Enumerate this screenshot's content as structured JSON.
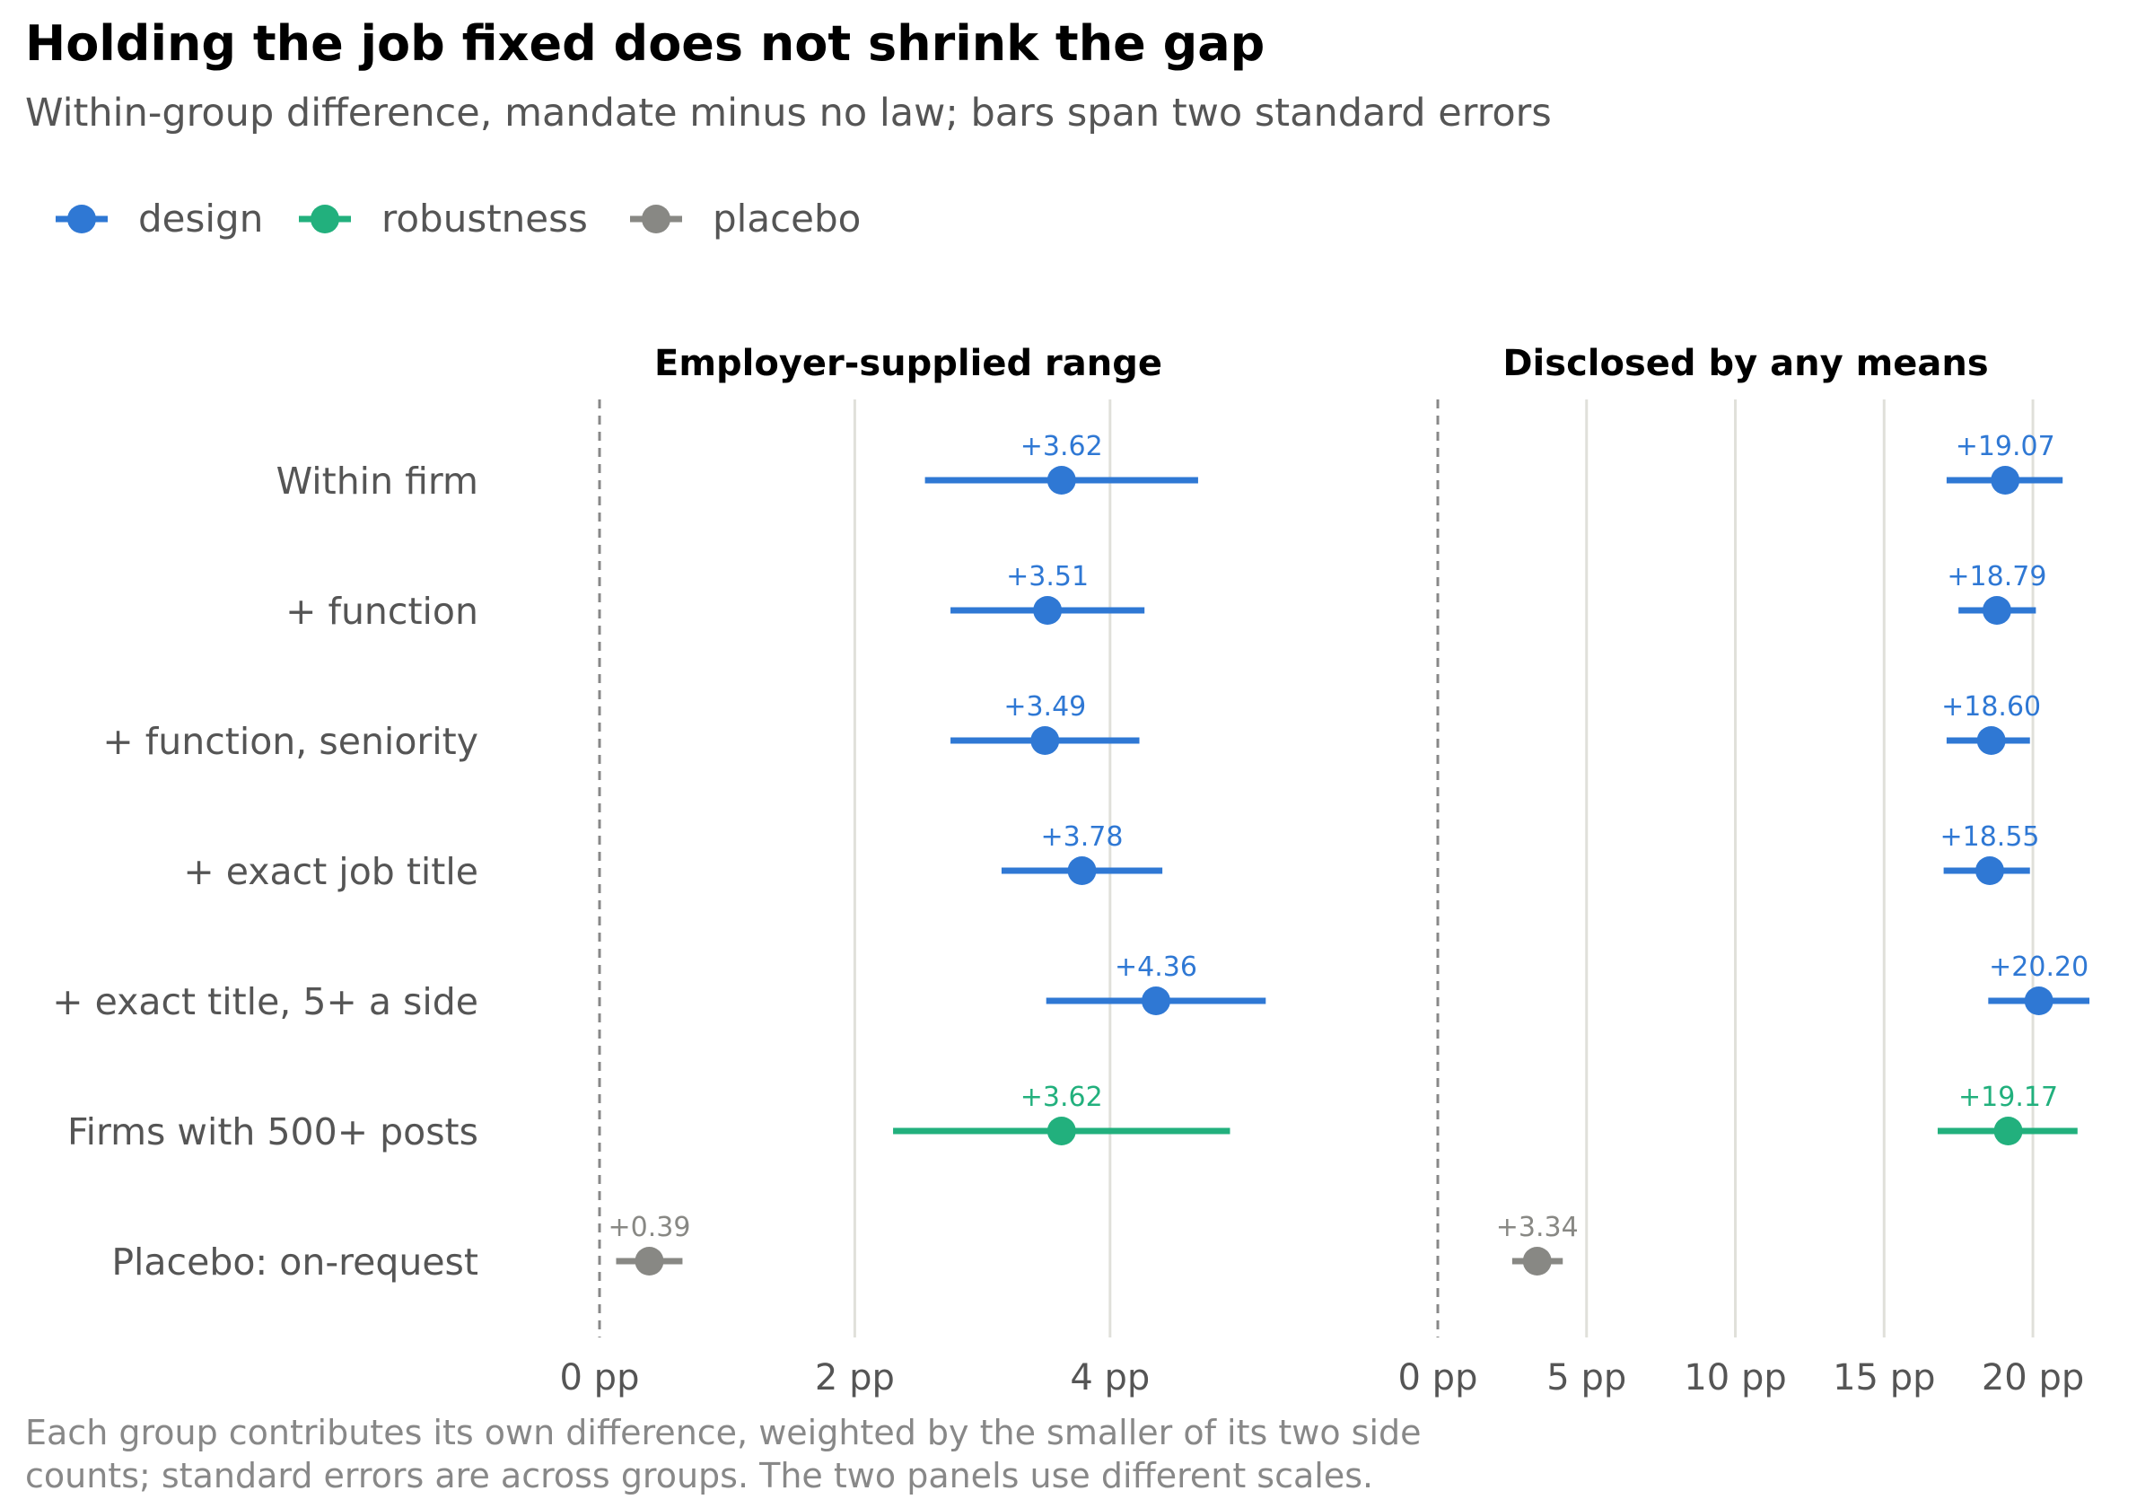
{
  "chart_data": {
    "type": "dot-errorbar",
    "title": "Holding the job fixed does not shrink the gap",
    "subtitle": "Within-group difference, mandate minus no law; bars span two standard errors",
    "caption": [
      "Each group contributes its own difference, weighted by the smaller of its two side",
      "counts; standard errors are across groups. The two panels use different scales."
    ],
    "legend": {
      "placement": "top-left",
      "entries": [
        {
          "key": "design",
          "label": "design",
          "color": "#2f78d4"
        },
        {
          "key": "robustness",
          "label": "robustness",
          "color": "#22b07d"
        },
        {
          "key": "placebo",
          "label": "placebo",
          "color": "#888884"
        }
      ]
    },
    "rows": [
      "Within firm",
      "+ function",
      "+ function, seniority",
      "+ exact job title",
      "+ exact title, 5+ a side",
      "Firms with 500+ posts",
      "Placebo: on-request"
    ],
    "row_groups": [
      "design",
      "design",
      "design",
      "design",
      "design",
      "robustness",
      "placebo"
    ],
    "grid": true,
    "zero_line": "dashed",
    "panels": [
      {
        "title": "Employer-supplied range",
        "xlim": [
          0,
          5.9
        ],
        "ticks": [
          0,
          2,
          4
        ],
        "tick_labels": [
          "0 pp",
          "2 pp",
          "4 pp"
        ],
        "estimates": [
          3.62,
          3.51,
          3.49,
          3.78,
          4.36,
          3.62,
          0.39
        ],
        "lower": [
          2.55,
          2.75,
          2.75,
          3.15,
          3.5,
          2.3,
          0.13
        ],
        "upper": [
          4.69,
          4.27,
          4.23,
          4.41,
          5.22,
          4.94,
          0.65
        ],
        "labels": [
          "+3.62",
          "+3.51",
          "+3.49",
          "+3.78",
          "+4.36",
          "+3.62",
          "+0.39"
        ]
      },
      {
        "title": "Disclosed by any means",
        "xlim": [
          0,
          22.2
        ],
        "ticks": [
          0,
          5,
          10,
          15,
          20
        ],
        "tick_labels": [
          "0 pp",
          "5 pp",
          "10 pp",
          "15 pp",
          "20 pp"
        ],
        "estimates": [
          19.07,
          18.79,
          18.6,
          18.55,
          20.2,
          19.17,
          3.34
        ],
        "lower": [
          17.1,
          17.5,
          17.1,
          17.0,
          18.5,
          16.8,
          2.5
        ],
        "upper": [
          21.0,
          20.1,
          19.9,
          19.9,
          21.9,
          21.5,
          4.2
        ],
        "labels": [
          "+19.07",
          "+18.79",
          "+18.60",
          "+18.55",
          "+20.20",
          "+19.17",
          "+3.34"
        ]
      }
    ]
  }
}
